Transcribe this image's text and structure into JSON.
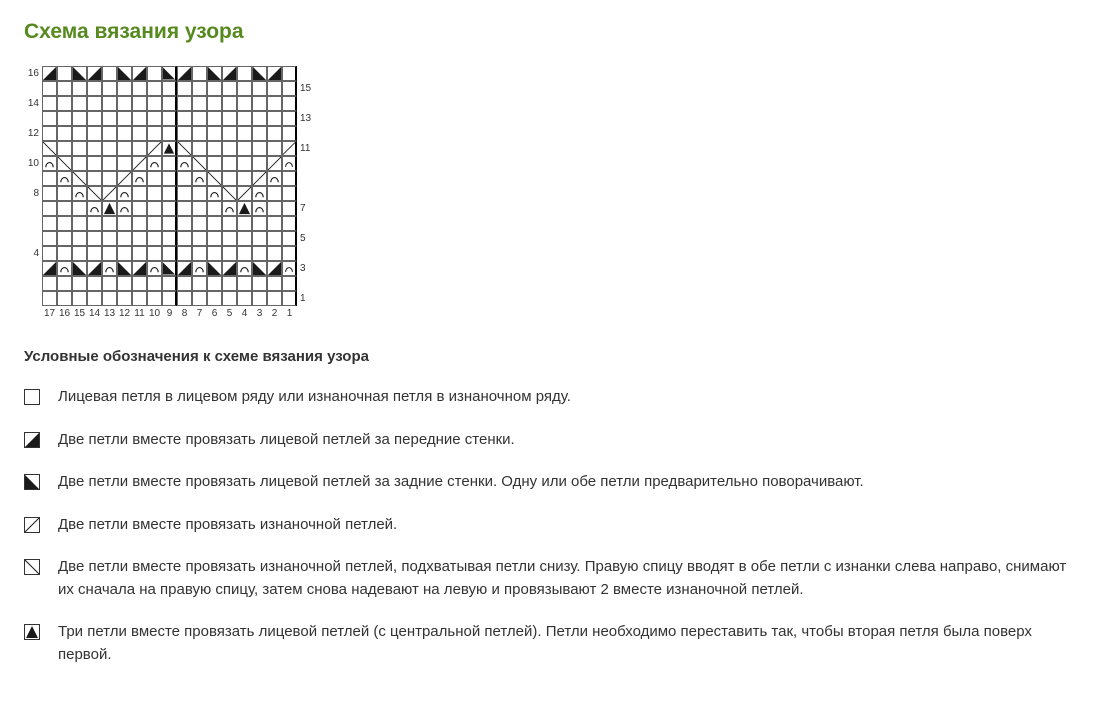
{
  "title": "Схема вязания узора",
  "title_color": "#568a1f",
  "subhead": "Условные обозначения к схеме вязания узора",
  "chart": {
    "rows": 16,
    "cols": 17,
    "cell_size": 15,
    "border_color": "#666666",
    "thick_after_cols": [
      8,
      16
    ],
    "left_labels": {
      "16": "16",
      "14": "14",
      "12": "12",
      "10": "10",
      "8": "8",
      "6": "",
      "4": "4",
      "2": ""
    },
    "right_labels": {
      "15": "15",
      "13": "13",
      "11": "11",
      "9": "",
      "7": "7",
      "5": "5",
      "3": "3",
      "1": "1"
    },
    "bottom_labels": [
      "17",
      "16",
      "15",
      "14",
      "13",
      "12",
      "11",
      "10",
      "9",
      "8",
      "7",
      "6",
      "5",
      "4",
      "3",
      "2",
      "1"
    ],
    "symbol_color": "#1a1a1a",
    "cells": {
      "16": [
        "tr",
        "",
        "tl",
        "tr",
        "",
        "tl",
        "tr",
        "",
        "tl",
        "tr",
        "",
        "tl",
        "tr",
        "",
        "tl",
        "tr",
        ""
      ],
      "15": [
        "",
        "",
        "",
        "",
        "",
        "",
        "",
        "",
        "",
        "",
        "",
        "",
        "",
        "",
        "",
        "",
        ""
      ],
      "14": [
        "",
        "",
        "",
        "",
        "",
        "",
        "",
        "",
        "",
        "",
        "",
        "",
        "",
        "",
        "",
        "",
        ""
      ],
      "13": [
        "",
        "",
        "",
        "",
        "",
        "",
        "",
        "",
        "",
        "",
        "",
        "",
        "",
        "",
        "",
        "",
        ""
      ],
      "12": [
        "",
        "",
        "",
        "",
        "",
        "",
        "",
        "",
        "",
        "",
        "",
        "",
        "",
        "",
        "",
        "",
        ""
      ],
      "11": [
        "bl",
        "",
        "",
        "",
        "",
        "",
        "",
        "br",
        "pk",
        "bl",
        "",
        "",
        "",
        "",
        "",
        "",
        "br"
      ],
      "10": [
        "arc",
        "bl",
        "",
        "",
        "",
        "",
        "br",
        "arc",
        "",
        "arc",
        "bl",
        "",
        "",
        "",
        "",
        "br",
        "arc"
      ],
      "9": [
        "",
        "arc",
        "bl",
        "",
        "",
        "br",
        "arc",
        "",
        "",
        "",
        "arc",
        "bl",
        "",
        "",
        "br",
        "arc",
        ""
      ],
      "8": [
        "",
        "",
        "arc",
        "bl",
        "br",
        "arc",
        "",
        "",
        "",
        "",
        "",
        "arc",
        "bl",
        "br",
        "arc",
        "",
        ""
      ],
      "7": [
        "",
        "",
        "",
        "arc",
        "pk",
        "arc",
        "",
        "",
        "",
        "",
        "",
        "",
        "arc",
        "pk",
        "arc",
        "",
        ""
      ],
      "6": [
        "",
        "",
        "",
        "",
        "",
        "",
        "",
        "",
        "",
        "",
        "",
        "",
        "",
        "",
        "",
        "",
        ""
      ],
      "5": [
        "",
        "",
        "",
        "",
        "",
        "",
        "",
        "",
        "",
        "",
        "",
        "",
        "",
        "",
        "",
        "",
        ""
      ],
      "4": [
        "",
        "",
        "",
        "",
        "",
        "",
        "",
        "",
        "",
        "",
        "",
        "",
        "",
        "",
        "",
        "",
        ""
      ],
      "3": [
        "tr",
        "arc",
        "tl",
        "tr",
        "arc",
        "tl",
        "tr",
        "arc",
        "tl",
        "tr",
        "arc",
        "tl",
        "tr",
        "arc",
        "tl",
        "tr",
        "arc"
      ],
      "2": [
        "",
        "",
        "",
        "",
        "",
        "",
        "",
        "",
        "",
        "",
        "",
        "",
        "",
        "",
        "",
        "",
        ""
      ],
      "1": [
        "",
        "",
        "",
        "",
        "",
        "",
        "",
        "",
        "",
        "",
        "",
        "",
        "",
        "",
        "",
        "",
        ""
      ]
    }
  },
  "legend": [
    {
      "symbol": "empty",
      "text": "Лицевая петля в лицевом ряду или изнаночная петля в изнаночном ряду."
    },
    {
      "symbol": "tr",
      "text": "Две петли вместе провязать лицевой петлей за передние стенки."
    },
    {
      "symbol": "tl",
      "text": "Две петли вместе провязать лицевой петлей за задние стенки. Одну или обе петли предварительно поворачивают."
    },
    {
      "symbol": "dr",
      "text": "Две петли вместе провязать изнаночной петлей."
    },
    {
      "symbol": "dl",
      "text": "Две петли вместе провязать изнаночной петлей, подхватывая петли снизу. Правую спицу вводят в обе петли с изнанки слева направо, снимают их сначала на правую спицу, затем снова надевают на левую и провязывают 2 вместе изнаночной петлей."
    },
    {
      "symbol": "pk",
      "text": "Три петли вместе провязать лицевой петлей (с центральной петлей). Петли необходимо переставить так, чтобы вторая петля была поверх первой."
    }
  ],
  "symbol_svgs": {
    "empty": "",
    "tl": "<svg viewBox='0 0 14 14'><polygon points='0,0 14,14 0,14' fill='#1a1a1a'/></svg>",
    "tr": "<svg viewBox='0 0 14 14'><polygon points='14,0 14,14 0,14' fill='#1a1a1a'/></svg>",
    "bl": "<svg viewBox='0 0 14 14'><line x1='0' y1='0' x2='14' y2='14' stroke='#1a1a1a' stroke-width='1'/></svg>",
    "br": "<svg viewBox='0 0 14 14'><line x1='14' y1='0' x2='0' y2='14' stroke='#1a1a1a' stroke-width='1'/></svg>",
    "dl": "<svg viewBox='0 0 14 14'><line x1='0' y1='0' x2='14' y2='14' stroke='#1a1a1a' stroke-width='1'/></svg>",
    "dr": "<svg viewBox='0 0 14 14'><line x1='14' y1='0' x2='0' y2='14' stroke='#1a1a1a' stroke-width='1'/></svg>",
    "pk": "<svg viewBox='0 0 14 14'><polygon points='7,1 13,13 1,13' fill='#1a1a1a'/></svg>",
    "arc": "<svg viewBox='0 0 14 14'><path d='M3 11 A4 5 0 0 1 11 11' fill='none' stroke='#1a1a1a' stroke-width='1.2'/></svg>"
  }
}
